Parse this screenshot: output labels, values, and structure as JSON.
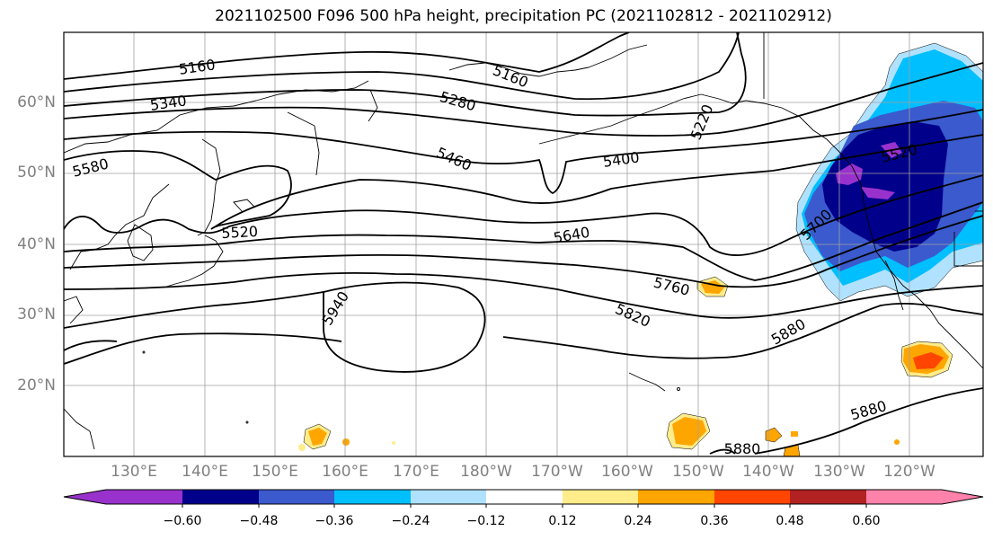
{
  "title": "2021102500 F096 500 hPa height, precipitation PC (2021102812 - 2021102912)",
  "lat_labels": [
    "60°N",
    "50°N",
    "40°N",
    "30°N",
    "20°N"
  ],
  "lon_labels": [
    "130°E",
    "140°E",
    "150°E",
    "160°E",
    "170°E",
    "180°W",
    "170°W",
    "160°W",
    "150°W",
    "140°W",
    "130°W",
    "120°W"
  ],
  "contour_labels": [
    "5160",
    "5160",
    "5340",
    "5280",
    "5220",
    "5580",
    "5460",
    "5400",
    "5520",
    "5520",
    "5640",
    "5700",
    "5760",
    "5940",
    "5820",
    "5880",
    "5880",
    "5880"
  ],
  "colorbar": {
    "ticks": [
      "−0.60",
      "−0.48",
      "−0.36",
      "−0.24",
      "−0.12",
      "0.12",
      "0.24",
      "0.36",
      "0.48",
      "0.60"
    ],
    "colors": [
      "#9932CC",
      "#00008B",
      "#3A5ACD",
      "#00BFFF",
      "#B0E2FF",
      "#FFFFFF",
      "#FFEC8B",
      "#FFA500",
      "#FF4500",
      "#B22222",
      "#FF82AB"
    ]
  }
}
